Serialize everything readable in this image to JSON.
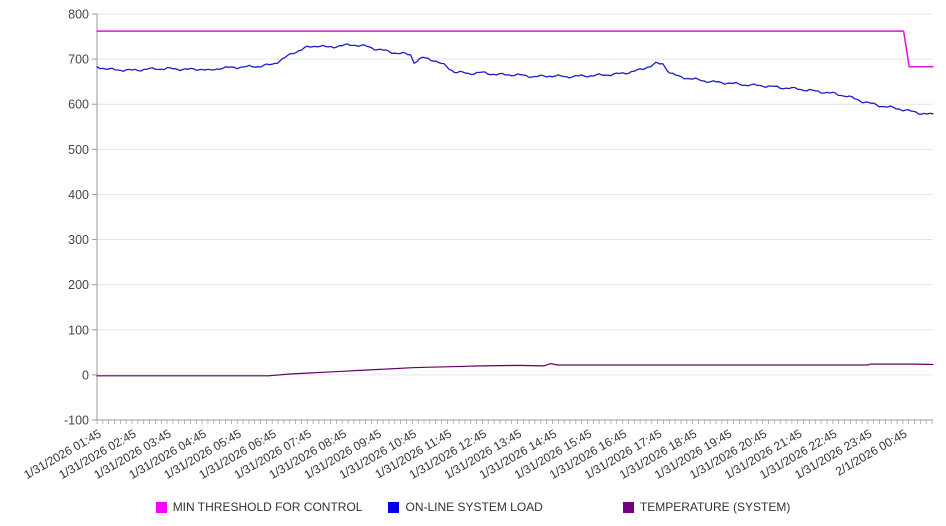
{
  "chart_data": {
    "type": "line",
    "title": "",
    "grid": "horizontal",
    "legend_position": "bottom-center",
    "x_axis": {
      "labels": [
        "1/31/2026 01:45",
        "1/31/2026 02:45",
        "1/31/2026 03:45",
        "1/31/2026 04:45",
        "1/31/2026 05:45",
        "1/31/2026 06:45",
        "1/31/2026 07:45",
        "1/31/2026 08:45",
        "1/31/2026 09:45",
        "1/31/2026 10:45",
        "1/31/2026 11:45",
        "1/31/2026 12:45",
        "1/31/2026 13:45",
        "1/31/2026 14:45",
        "1/31/2026 15:45",
        "1/31/2026 16:45",
        "1/31/2026 17:45",
        "1/31/2026 18:45",
        "1/31/2026 19:45",
        "1/31/2026 20:45",
        "1/31/2026 21:45",
        "1/31/2026 22:45",
        "1/31/2026 23:45",
        "2/1/2026 00:45"
      ],
      "label_rotation_deg": -30,
      "minor_tick_minutes": 10,
      "domain_hours": [
        0,
        23.86
      ],
      "axis_color": "#999999"
    },
    "y_axis": {
      "min": -100,
      "max": 800,
      "step": 100,
      "ticks": [
        800,
        700,
        600,
        500,
        400,
        300,
        200,
        100,
        0,
        -100
      ],
      "gridline_color": "#e6e6e6",
      "axis_color": "#999999"
    },
    "series": [
      {
        "name": "TEMPERATURE (SYSTEM)",
        "color": "#630063",
        "swatch_color": "#75007D",
        "points": [
          [
            0,
            -2
          ],
          [
            4.9,
            -2
          ],
          [
            5.5,
            2
          ],
          [
            6,
            4
          ],
          [
            6.5,
            6
          ],
          [
            7,
            8
          ],
          [
            7.5,
            10
          ],
          [
            8,
            12
          ],
          [
            8.5,
            14
          ],
          [
            9,
            16
          ],
          [
            9.5,
            17
          ],
          [
            10,
            18
          ],
          [
            10.5,
            19
          ],
          [
            11,
            20
          ],
          [
            12,
            21
          ],
          [
            12.75,
            20
          ],
          [
            12.95,
            25
          ],
          [
            13.15,
            22
          ],
          [
            14,
            22
          ],
          [
            16,
            22
          ],
          [
            18,
            22
          ],
          [
            20,
            22
          ],
          [
            22,
            22
          ],
          [
            22.08,
            24
          ],
          [
            23.3,
            24
          ],
          [
            23.86,
            23
          ]
        ]
      },
      {
        "name": "ON-LINE SYSTEM LOAD",
        "color": "#1E1EC8",
        "swatch_color": "#0000EF",
        "points": [
          [
            0,
            683
          ],
          [
            0.35,
            677
          ],
          [
            1,
            675
          ],
          [
            1.5,
            678
          ],
          [
            2,
            679
          ],
          [
            2.6,
            677
          ],
          [
            3,
            678
          ],
          [
            3.2,
            674
          ],
          [
            3.5,
            680
          ],
          [
            4,
            682
          ],
          [
            4.6,
            684
          ],
          [
            5,
            688
          ],
          [
            5.3,
            700
          ],
          [
            5.6,
            714
          ],
          [
            6,
            726
          ],
          [
            6.3,
            730
          ],
          [
            6.6,
            726
          ],
          [
            7,
            730
          ],
          [
            7.3,
            732
          ],
          [
            7.7,
            728
          ],
          [
            8,
            722
          ],
          [
            8.5,
            714
          ],
          [
            8.95,
            710
          ],
          [
            9.05,
            693
          ],
          [
            9.3,
            703
          ],
          [
            9.6,
            698
          ],
          [
            9.9,
            687
          ],
          [
            10.2,
            672
          ],
          [
            10.6,
            668
          ],
          [
            11,
            670
          ],
          [
            11.4,
            666
          ],
          [
            12,
            665
          ],
          [
            12.5,
            661
          ],
          [
            13,
            663
          ],
          [
            13.4,
            661
          ],
          [
            14,
            663
          ],
          [
            14.5,
            665
          ],
          [
            15,
            668
          ],
          [
            15.5,
            676
          ],
          [
            15.95,
            690
          ],
          [
            16.15,
            689
          ],
          [
            16.35,
            670
          ],
          [
            16.6,
            661
          ],
          [
            17,
            656
          ],
          [
            17.5,
            650
          ],
          [
            18,
            647
          ],
          [
            18.5,
            643
          ],
          [
            19,
            641
          ],
          [
            19.5,
            637
          ],
          [
            20,
            634
          ],
          [
            20.5,
            629
          ],
          [
            21,
            624
          ],
          [
            21.4,
            618
          ],
          [
            21.7,
            610
          ],
          [
            22,
            603
          ],
          [
            22.4,
            596
          ],
          [
            22.8,
            591
          ],
          [
            23,
            588
          ],
          [
            23.3,
            583
          ],
          [
            23.6,
            579
          ],
          [
            23.86,
            577
          ]
        ]
      },
      {
        "name": "MIN THRESHOLD FOR CONTROL",
        "color": "#E312E0",
        "swatch_color": "#FB00FB",
        "points": [
          [
            0,
            762
          ],
          [
            23.02,
            762
          ],
          [
            23.18,
            683
          ],
          [
            23.86,
            683
          ]
        ]
      }
    ]
  },
  "legend": {
    "order_note": "legend shown left-to-right: threshold, load, temperature"
  }
}
